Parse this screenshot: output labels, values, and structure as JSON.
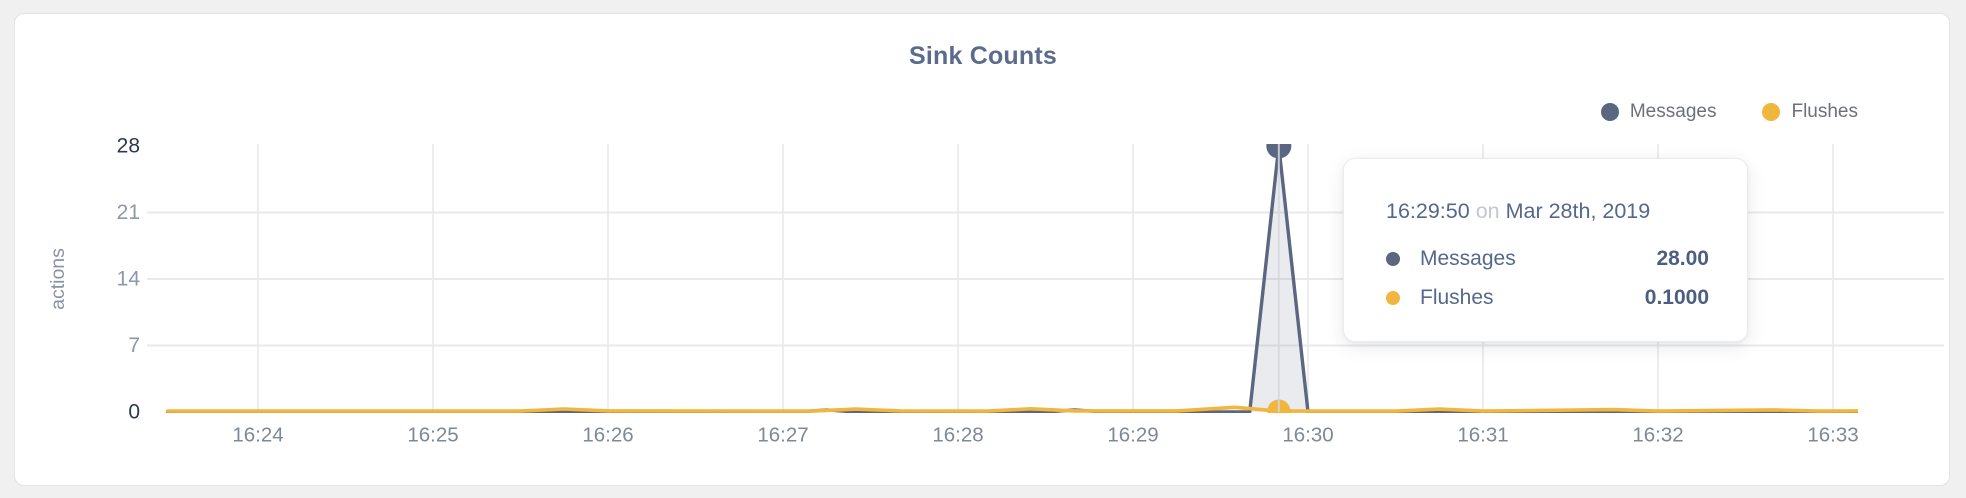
{
  "page": {
    "background": "#f0f0f1",
    "card_background": "#ffffff",
    "card_border": "#e4e4e5"
  },
  "chart_data": {
    "type": "line",
    "title": "Sink Counts",
    "xlabel": "",
    "ylabel": "actions",
    "ylim": [
      0,
      28
    ],
    "y_ticks": [
      0,
      7,
      14,
      21,
      28
    ],
    "x_ticks": [
      "16:24",
      "16:25",
      "16:26",
      "16:27",
      "16:28",
      "16:29",
      "16:30",
      "16:31",
      "16:32",
      "16:33"
    ],
    "grid": true,
    "legend_position": "top-right",
    "colors": {
      "grid_vertical": "#ededee",
      "grid_horizontal": "#e9e9ea",
      "axis_tick": "#8e97a8",
      "axis_tick_dark": "#2c3850",
      "x_tick": "#7e8899",
      "axis_title": "#8a93a4",
      "hover_line": "#d6d8dc",
      "messages": "#5b6680",
      "messages_fill": "rgba(99,110,140,0.14)",
      "flushes": "#f1b63e"
    },
    "series": [
      {
        "name": "Messages",
        "color": "#5b6680",
        "points": [
          [
            "16:23:29",
            0
          ],
          [
            "16:27:05",
            0
          ],
          [
            "16:27:15",
            0.22
          ],
          [
            "16:27:25",
            0
          ],
          [
            "16:28:30",
            0
          ],
          [
            "16:28:40",
            0.22
          ],
          [
            "16:28:50",
            0
          ],
          [
            "16:29:40",
            0
          ],
          [
            "16:29:50",
            28
          ],
          [
            "16:30:00",
            0
          ],
          [
            "16:33:09",
            0
          ]
        ]
      },
      {
        "name": "Flushes",
        "color": "#f1b63e",
        "points": [
          [
            "16:23:29",
            0.1
          ],
          [
            "16:25:30",
            0.1
          ],
          [
            "16:25:45",
            0.32
          ],
          [
            "16:26:00",
            0.12
          ],
          [
            "16:27:10",
            0.1
          ],
          [
            "16:27:25",
            0.3
          ],
          [
            "16:27:40",
            0.12
          ],
          [
            "16:28:10",
            0.1
          ],
          [
            "16:28:25",
            0.34
          ],
          [
            "16:28:40",
            0.12
          ],
          [
            "16:29:15",
            0.12
          ],
          [
            "16:29:35",
            0.5
          ],
          [
            "16:29:50",
            0.1
          ],
          [
            "16:30:30",
            0.1
          ],
          [
            "16:30:45",
            0.3
          ],
          [
            "16:31:00",
            0.1
          ],
          [
            "16:31:45",
            0.25
          ],
          [
            "16:32:00",
            0.1
          ],
          [
            "16:32:40",
            0.22
          ],
          [
            "16:32:55",
            0.1
          ],
          [
            "16:33:09",
            0.12
          ]
        ]
      }
    ],
    "highlight": {
      "time": "16:29:50",
      "values": {
        "Messages": 28,
        "Flushes": 0.1
      }
    }
  },
  "legend": {
    "items": [
      {
        "label": "Messages",
        "color": "#5b6680"
      },
      {
        "label": "Flushes",
        "color": "#f1b63e"
      }
    ]
  },
  "tooltip": {
    "time": "16:29:50",
    "on_word": "on",
    "date": "Mar 28th, 2019",
    "rows": [
      {
        "label": "Messages",
        "value": "28.00",
        "color": "#5b6680"
      },
      {
        "label": "Flushes",
        "value": "0.1000",
        "color": "#f1b63e"
      }
    ]
  }
}
